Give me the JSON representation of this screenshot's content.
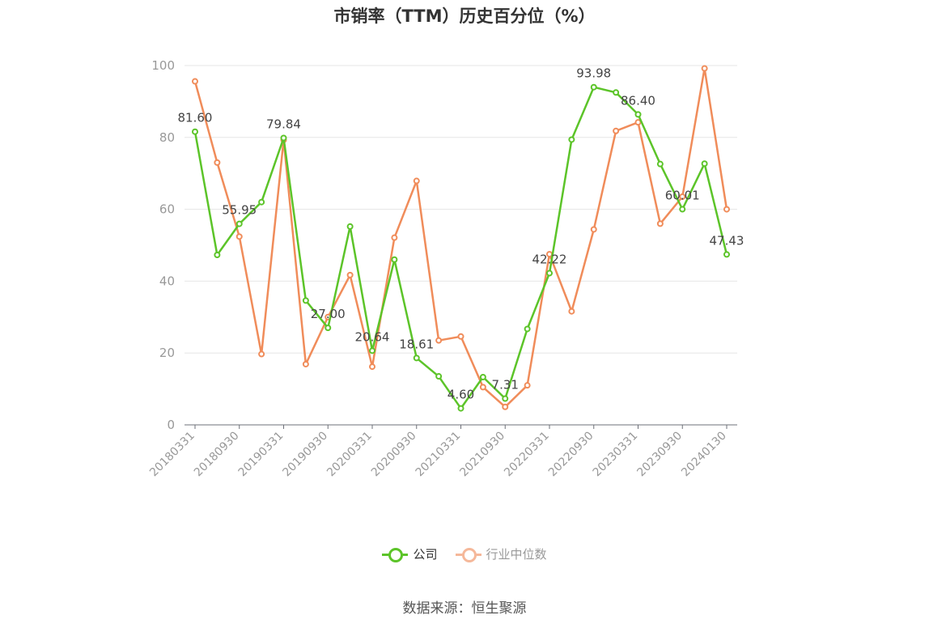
{
  "title": "市销率（TTM）历史百分位（%）",
  "source": "数据来源：恒生聚源",
  "colors": {
    "company": "#5cc429",
    "industry": "#f08c5a",
    "grid": "#e6e6e6",
    "axis": "#6e7079",
    "tick_text": "#999999",
    "label_text": "#444444"
  },
  "chart_data": {
    "type": "line",
    "ylim": [
      0,
      100
    ],
    "yticks": [
      0,
      20,
      40,
      60,
      80,
      100
    ],
    "x_tick_labels": [
      "20180331",
      "20180930",
      "20190331",
      "20190930",
      "20200331",
      "20200930",
      "20210331",
      "20210930",
      "20220331",
      "20220930",
      "20230331",
      "20230930",
      "20240130"
    ],
    "x": [
      "20180331",
      "20180630",
      "20180930",
      "20181231",
      "20190331",
      "20190630",
      "20190930",
      "20191231",
      "20200331",
      "20200630",
      "20200930",
      "20201231",
      "20210331",
      "20210630",
      "20210930",
      "20211231",
      "20220331",
      "20220630",
      "20220930",
      "20221231",
      "20230331",
      "20230630",
      "20230930",
      "20231231",
      "20240130"
    ],
    "grid": true,
    "legend_position": "bottom",
    "series": [
      {
        "name": "公司",
        "values": [
          81.6,
          47.3,
          55.95,
          62.0,
          79.84,
          34.6,
          27.0,
          55.2,
          20.64,
          46.0,
          18.61,
          13.5,
          4.6,
          13.3,
          7.31,
          26.7,
          42.22,
          79.4,
          93.98,
          92.5,
          86.4,
          72.6,
          60.01,
          72.7,
          47.43
        ]
      },
      {
        "name": "行业中位数",
        "values": [
          95.6,
          73.0,
          52.4,
          19.7,
          79.3,
          16.9,
          30.0,
          41.7,
          16.2,
          52.1,
          67.9,
          23.5,
          24.6,
          10.5,
          5.0,
          11.0,
          47.5,
          31.6,
          54.4,
          81.8,
          84.2,
          56.0,
          63.5,
          99.2,
          60.0
        ]
      }
    ],
    "data_labels": [
      {
        "index": 0,
        "text": "81.60"
      },
      {
        "index": 2,
        "text": "55.95"
      },
      {
        "index": 4,
        "text": "79.84"
      },
      {
        "index": 6,
        "text": "27.00"
      },
      {
        "index": 8,
        "text": "20.64"
      },
      {
        "index": 10,
        "text": "18.61"
      },
      {
        "index": 12,
        "text": "4.60"
      },
      {
        "index": 14,
        "text": "7.31"
      },
      {
        "index": 16,
        "text": "42.22"
      },
      {
        "index": 18,
        "text": "93.98"
      },
      {
        "index": 20,
        "text": "86.40"
      },
      {
        "index": 22,
        "text": "60.01"
      },
      {
        "index": 24,
        "text": "47.43"
      }
    ]
  }
}
